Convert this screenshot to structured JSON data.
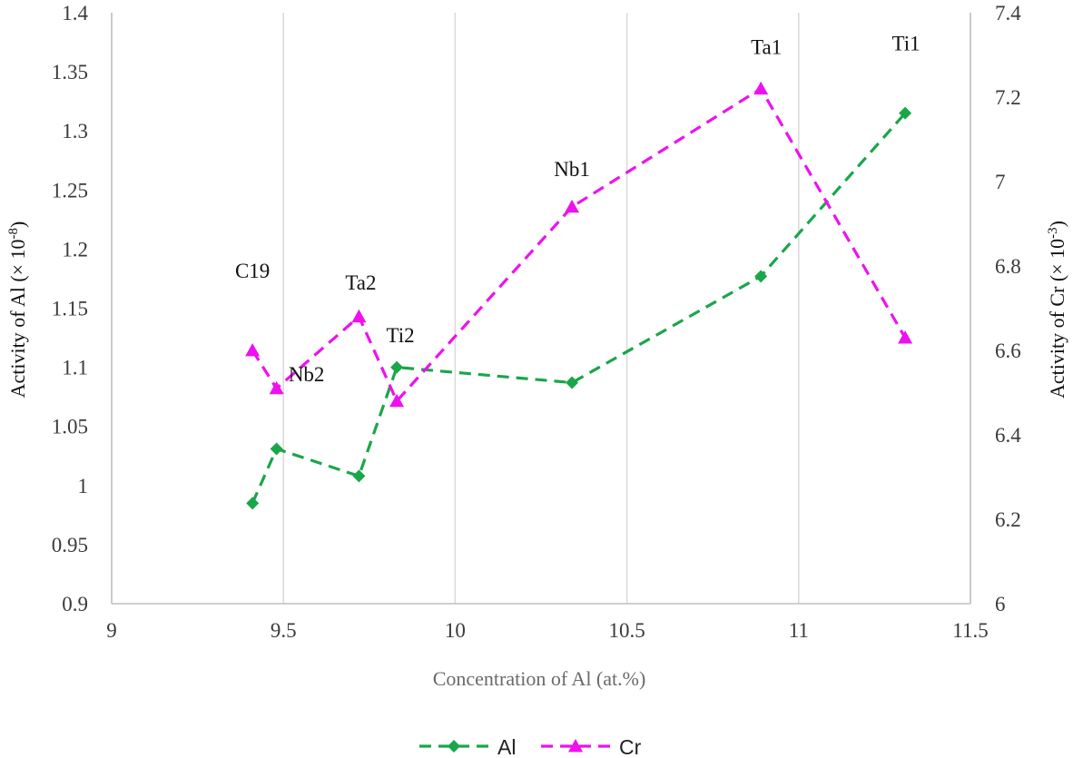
{
  "chart_data": {
    "type": "line",
    "xlabel": "Concentration of Al (at.%)",
    "ylabel_left": "Activity of Al (× 10",
    "ylabel_left_exp": "-8",
    "ylabel_right": "Activity of Cr (× 10",
    "ylabel_right_exp": "-3",
    "ylabel_close": ")",
    "xlim": [
      9,
      11.5
    ],
    "ylim_left": [
      0.9,
      1.4
    ],
    "ylim_right": [
      6,
      7.4
    ],
    "x_ticks": [
      9,
      9.5,
      10,
      10.5,
      11,
      11.5
    ],
    "x_tick_labels": [
      "9",
      "9.5",
      "10",
      "10.5",
      "11",
      "11.5"
    ],
    "y_left_ticks": [
      0.9,
      0.95,
      1,
      1.05,
      1.1,
      1.15,
      1.2,
      1.25,
      1.3,
      1.35,
      1.4
    ],
    "y_left_tick_labels": [
      "0.9",
      "0.95",
      "1",
      "1.05",
      "1.1",
      "1.15",
      "1.2",
      "1.25",
      "1.3",
      "1.35",
      "1.4"
    ],
    "y_right_ticks": [
      6,
      6.2,
      6.4,
      6.6,
      6.8,
      7,
      7.2,
      7.4
    ],
    "y_right_tick_labels": [
      "6",
      "6.2",
      "6.4",
      "6.6",
      "6.8",
      "7",
      "7.2",
      "7.4"
    ],
    "grid": "vertical",
    "legend_position": "bottom",
    "series": [
      {
        "name": "Al",
        "axis": "left",
        "color": "#1aa64a",
        "marker": "diamond",
        "dash": true,
        "x": [
          9.41,
          9.48,
          9.72,
          9.83,
          10.34,
          10.89,
          11.31
        ],
        "y": [
          0.985,
          1.031,
          1.008,
          1.1,
          1.087,
          1.177,
          1.315
        ]
      },
      {
        "name": "Cr",
        "axis": "right",
        "color": "#ee11ee",
        "marker": "triangle",
        "dash": true,
        "x": [
          9.41,
          9.48,
          9.72,
          9.83,
          10.34,
          10.89,
          11.31
        ],
        "y": [
          6.6,
          6.51,
          6.68,
          6.48,
          6.94,
          7.22,
          6.63
        ]
      }
    ],
    "point_labels": [
      {
        "text": "C19",
        "x": 9.41,
        "y_right": 6.6
      },
      {
        "text": "Nb2",
        "x": 9.48,
        "y_right": 6.51
      },
      {
        "text": "Ta2",
        "x": 9.72,
        "y_right": 6.68
      },
      {
        "text": "Ti2",
        "x": 9.83,
        "y_right": 6.48
      },
      {
        "text": "Nb1",
        "x": 10.34,
        "y_right": 6.94
      },
      {
        "text": "Ta1",
        "x": 10.89,
        "y_right": 7.22
      },
      {
        "text": "Ti1",
        "x": 11.31,
        "y_right": 7.16
      }
    ]
  }
}
